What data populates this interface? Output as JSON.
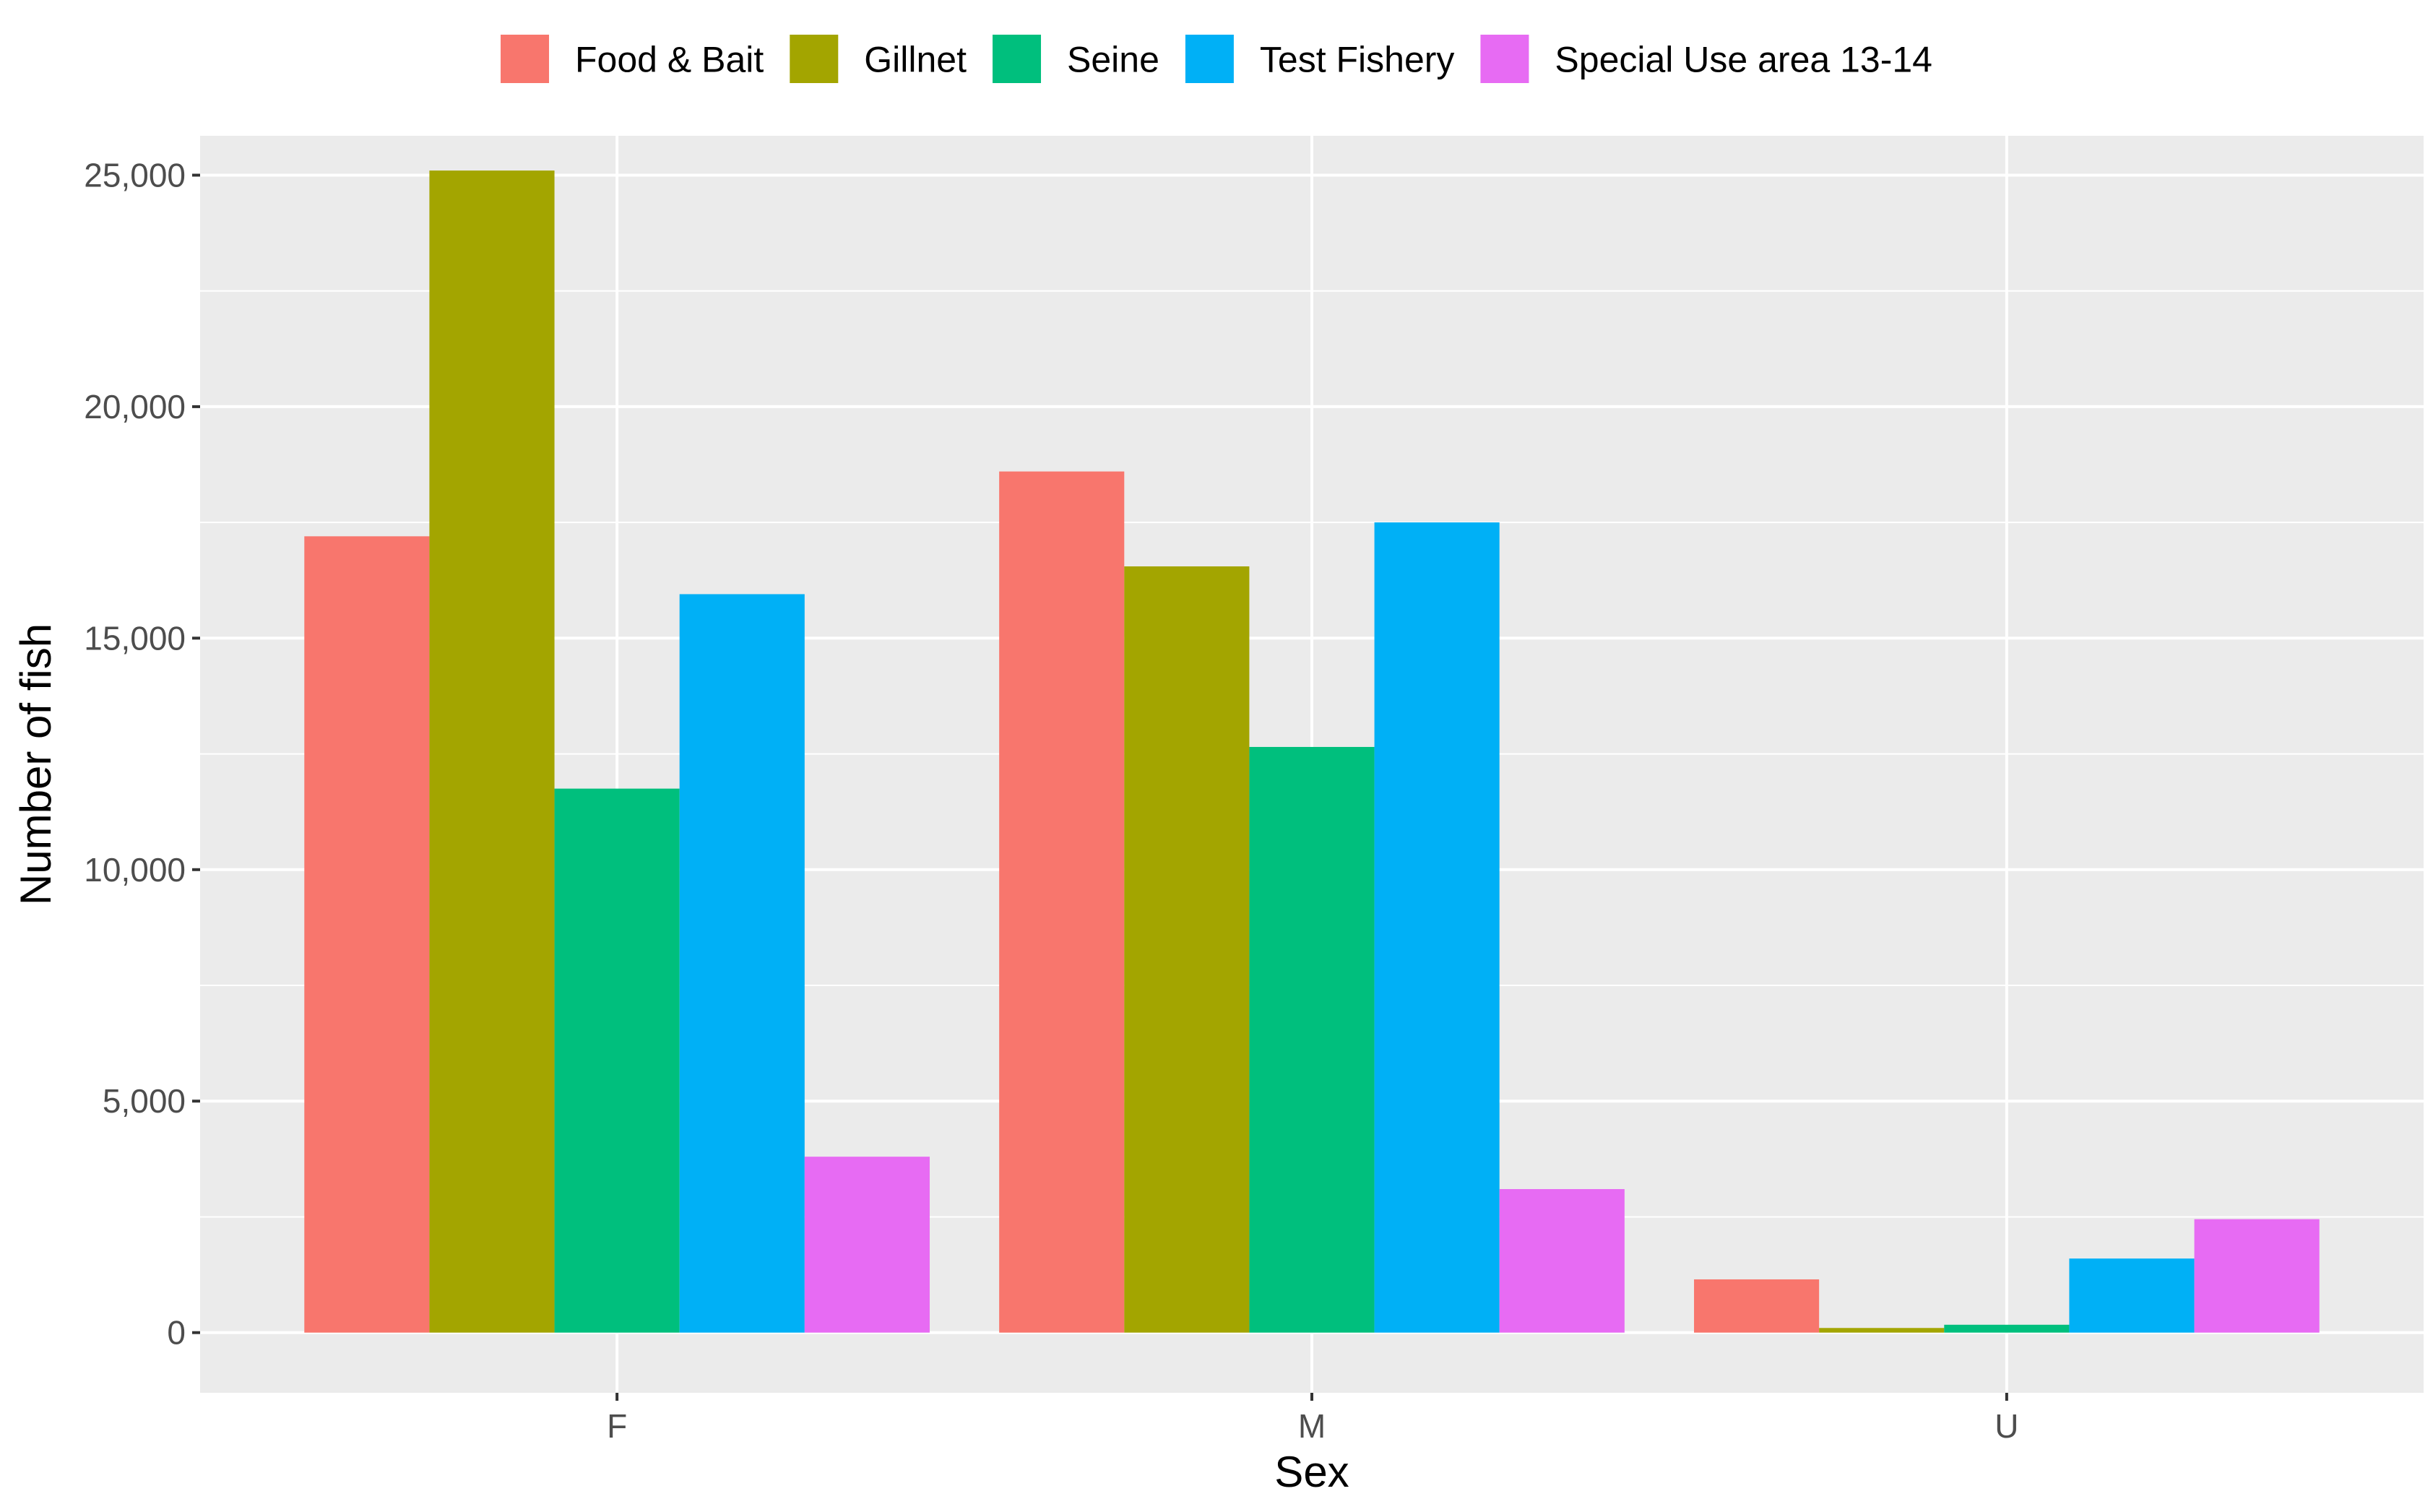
{
  "chart_data": {
    "type": "bar",
    "xlabel": "Sex",
    "ylabel": "Number of fish",
    "categories": [
      "F",
      "M",
      "U"
    ],
    "ylim": [
      -1300,
      25850
    ],
    "yticks": [
      0,
      5000,
      10000,
      15000,
      20000,
      25000
    ],
    "ytick_labels": [
      "0",
      "5,000",
      "10,000",
      "15,000",
      "20,000",
      "25,000"
    ],
    "grid": true,
    "legend_position": "top",
    "series": [
      {
        "name": "Food & Bait",
        "color": "#F8766D",
        "values": [
          17200,
          18600,
          1150
        ]
      },
      {
        "name": "Gillnet",
        "color": "#A3A500",
        "values": [
          25100,
          16550,
          100
        ]
      },
      {
        "name": "Seine",
        "color": "#00BF7D",
        "values": [
          11750,
          12650,
          170
        ]
      },
      {
        "name": "Test Fishery",
        "color": "#00B0F6",
        "values": [
          15950,
          17500,
          1600
        ]
      },
      {
        "name": "Special Use area 13-14",
        "color": "#E76BF3",
        "values": [
          3800,
          3100,
          2450
        ]
      }
    ],
    "panel_background": "#EBEBEB",
    "grid_color": "#FFFFFF"
  }
}
